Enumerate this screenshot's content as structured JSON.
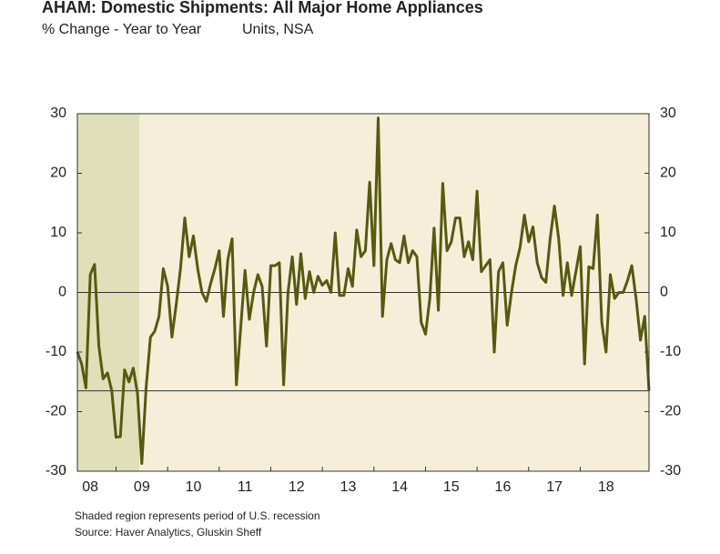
{
  "chart_data": {
    "type": "line",
    "title": "AHAM: Domestic Shipments: All Major Home Appliances",
    "subtitle": "% Change - Year to Year",
    "units_note": "Units, NSA",
    "footnotes": [
      "Shaded region represents period of U.S. recession",
      "Source: Haver Analytics, Gluskin Sheff"
    ],
    "categories": [
      null,
      null,
      null,
      "08",
      null,
      null,
      null,
      null,
      null,
      null,
      null,
      null,
      null,
      null,
      null,
      "09",
      null,
      null,
      null,
      null,
      null,
      null,
      null,
      null,
      null,
      null,
      null,
      "10",
      null,
      null,
      null,
      null,
      null,
      null,
      null,
      null,
      null,
      null,
      null,
      "11",
      null,
      null,
      null,
      null,
      null,
      null,
      null,
      null,
      null,
      null,
      null,
      "12",
      null,
      null,
      null,
      null,
      null,
      null,
      null,
      null,
      null,
      null,
      null,
      "13",
      null,
      null,
      null,
      null,
      null,
      null,
      null,
      null,
      null,
      null,
      null,
      "14",
      null,
      null,
      null,
      null,
      null,
      null,
      null,
      null,
      null,
      null,
      null,
      "15",
      null,
      null,
      null,
      null,
      null,
      null,
      null,
      null,
      null,
      null,
      null,
      "16",
      null,
      null,
      null,
      null,
      null,
      null,
      null,
      null,
      null,
      null,
      null,
      "17",
      null,
      null,
      null,
      null,
      null,
      null,
      null,
      null,
      null,
      null,
      null,
      "18",
      null,
      null,
      null,
      null,
      null,
      null,
      null,
      null,
      null,
      null
    ],
    "series": [
      {
        "color": "#555a10",
        "values": [
          -10,
          -12,
          -16,
          3,
          4.7,
          -9,
          -14.5,
          -13.5,
          -16.5,
          -24.3,
          -24.2,
          -13,
          -15,
          -12.7,
          -17,
          -28.7,
          -16,
          -7.5,
          -6.5,
          -4,
          4,
          1,
          -7.5,
          -2,
          4,
          12.5,
          6,
          9.5,
          4,
          0,
          -1.5,
          1.5,
          4,
          7,
          -4,
          5.5,
          9,
          -15.5,
          -6,
          3.7,
          -4.5,
          0,
          3,
          1,
          -9,
          4.5,
          4.5,
          5,
          -15.5,
          0,
          6,
          -2,
          6.5,
          -1,
          3.5,
          0,
          2.7,
          1.2,
          2,
          0,
          10,
          -0.5,
          -0.5,
          4,
          1,
          10.5,
          6,
          7,
          18.5,
          4.5,
          29.3,
          -4,
          5.5,
          8.2,
          5.5,
          5,
          9.5,
          5,
          7,
          6,
          -5,
          -7,
          -1,
          10.8,
          -3,
          18.3,
          7,
          8.5,
          12.5,
          12.5,
          6,
          8.5,
          5.5,
          17,
          3.5,
          4.5,
          5.5,
          -10,
          3.5,
          5,
          -5.5,
          0,
          4.5,
          7.5,
          13,
          8.5,
          11,
          5,
          2.5,
          1.7,
          9,
          14.5,
          9,
          -0.5,
          5,
          -0.5,
          3.5,
          7.7,
          -12,
          4.3,
          4,
          13,
          -5,
          -10,
          3,
          -1,
          0,
          0,
          2,
          4.5,
          -1,
          -8,
          -4,
          -16.5
        ]
      }
    ],
    "ylim": [
      -30,
      30
    ],
    "yticks": [
      -30,
      -20,
      -10,
      0,
      10,
      20,
      30
    ],
    "shade": {
      "from": 0,
      "to": 14.4,
      "color": "#dfdfb9"
    },
    "plot_background": "#f6eed9"
  }
}
